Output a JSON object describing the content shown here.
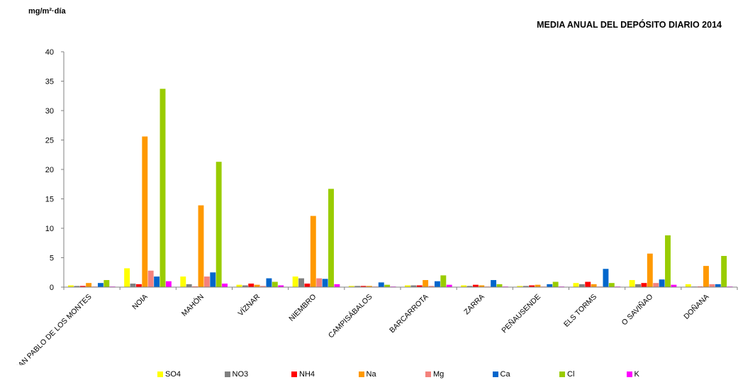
{
  "chart_data": {
    "type": "bar",
    "title": "MEDIA ANUAL DEL DEPÓSITO DIARIO 2014",
    "ylabel": "mg/m²·día",
    "xlabel": "",
    "ylim": [
      0,
      40
    ],
    "yticks": [
      "0",
      "5",
      "10",
      "15",
      "20",
      "25",
      "30",
      "35",
      "40"
    ],
    "grid": false,
    "legend_position": "bottom",
    "categories": [
      "SAN PABLO DE LOS MONTES",
      "NOIA",
      "MAHÓN",
      "VÍZNAR",
      "NIEMBRO",
      "CAMPISÁBALOS",
      "BARCARROTA",
      "ZARRA",
      "PEÑAUSENDE",
      "ELS TORMS",
      "O SAVIÑAO",
      "DOÑANA"
    ],
    "series": [
      {
        "name": "SO4",
        "color": "#FFFF00",
        "values": [
          0.3,
          3.2,
          1.8,
          0.4,
          1.8,
          0.2,
          0.3,
          0.3,
          0.2,
          0.7,
          1.2,
          0.5
        ]
      },
      {
        "name": "NO3",
        "color": "#808080",
        "values": [
          0.2,
          0.6,
          0.5,
          0.3,
          1.5,
          0.2,
          0.3,
          0.2,
          0.2,
          0.5,
          0.5,
          0.1
        ]
      },
      {
        "name": "NH4",
        "color": "#FF0000",
        "values": [
          0.2,
          0.5,
          0.1,
          0.6,
          0.6,
          0.2,
          0.3,
          0.4,
          0.3,
          0.9,
          0.7,
          0.1
        ]
      },
      {
        "name": "Na",
        "color": "#FF9900",
        "values": [
          0.7,
          25.6,
          13.9,
          0.4,
          12.1,
          0.2,
          1.2,
          0.3,
          0.4,
          0.5,
          5.7,
          3.6
        ]
      },
      {
        "name": "Mg",
        "color": "#F4827C",
        "values": [
          0.1,
          2.8,
          1.8,
          0.2,
          1.5,
          0.1,
          0.2,
          0.1,
          0.1,
          0.1,
          0.7,
          0.5
        ]
      },
      {
        "name": "Ca",
        "color": "#0066CC",
        "values": [
          0.7,
          1.8,
          2.5,
          1.5,
          1.4,
          0.8,
          1.0,
          1.2,
          0.5,
          3.1,
          1.3,
          0.5
        ]
      },
      {
        "name": "Cl",
        "color": "#99CC00",
        "values": [
          1.2,
          33.7,
          21.3,
          0.9,
          16.7,
          0.4,
          2.0,
          0.5,
          0.9,
          0.7,
          8.8,
          5.3
        ]
      },
      {
        "name": "K",
        "color": "#FF00FF",
        "values": [
          0.1,
          1.0,
          0.6,
          0.3,
          0.5,
          0.1,
          0.4,
          0.1,
          0.1,
          0.1,
          0.4,
          0.1
        ]
      }
    ]
  }
}
